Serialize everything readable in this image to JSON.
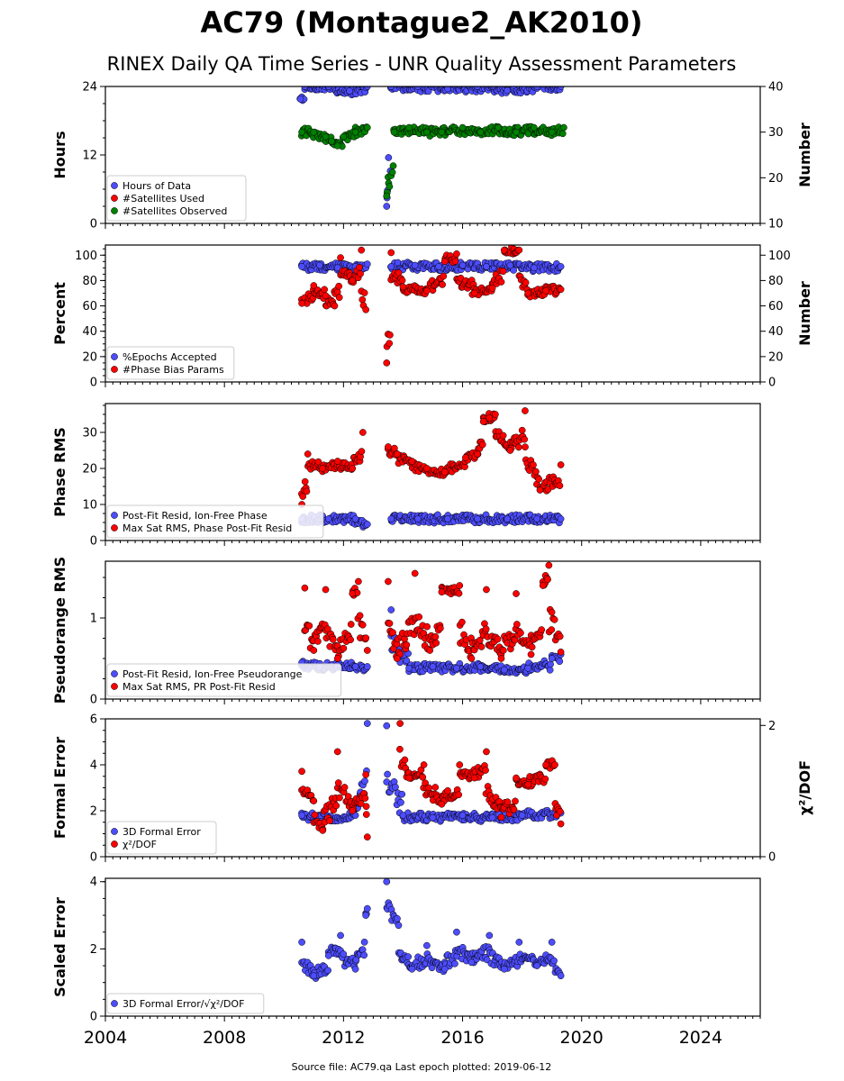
{
  "header": {
    "title": "AC79 (Montague2_AK2010)",
    "subtitle": "RINEX Daily QA Time Series - UNR Quality Assessment Parameters"
  },
  "footer": {
    "text": "Source file: AC79.qa Last epoch plotted: 2019-06-12"
  },
  "colors": {
    "blue": "#4d4dff",
    "red": "#ff0000",
    "green": "#008000",
    "edge": "#000000"
  },
  "chart_data": [
    {
      "type": "scatter",
      "ylabel": "Hours",
      "ylabel_right": "Number",
      "xlim": [
        2004,
        2026
      ],
      "ylim": [
        0,
        24
      ],
      "ylim_right": [
        10,
        40
      ],
      "yticks": [
        0,
        12,
        24
      ],
      "yticks_right": [
        10,
        20,
        30,
        40
      ],
      "legend_position": "lower-left",
      "series": [
        {
          "name": "Hours of Data",
          "color": "blue",
          "axis": "left",
          "points": [
            [
              2010.55,
              21.8
            ],
            [
              2010.7,
              24
            ],
            [
              2011.5,
              24
            ],
            [
              2012.2,
              23.2
            ],
            [
              2012.8,
              24
            ],
            [
              2013.45,
              3
            ],
            [
              2013.6,
              24
            ],
            [
              2014.5,
              24
            ],
            [
              2015.5,
              23.6
            ],
            [
              2016.5,
              24
            ],
            [
              2017.5,
              23.3
            ],
            [
              2018.5,
              24
            ],
            [
              2019.3,
              24
            ]
          ]
        },
        {
          "name": "#Satellites Used",
          "color": "red",
          "axis": "right",
          "points": []
        },
        {
          "name": "#Satellites Observed",
          "color": "green",
          "axis": "right",
          "points": [
            [
              2010.6,
              30
            ],
            [
              2011.0,
              30
            ],
            [
              2011.4,
              29
            ],
            [
              2011.6,
              28
            ],
            [
              2011.8,
              27
            ],
            [
              2012.0,
              29
            ],
            [
              2012.4,
              30
            ],
            [
              2012.8,
              31
            ],
            [
              2013.45,
              16
            ],
            [
              2013.7,
              30
            ],
            [
              2014.2,
              31
            ],
            [
              2014.8,
              30
            ],
            [
              2015.3,
              30
            ],
            [
              2016.0,
              31
            ],
            [
              2016.6,
              30
            ],
            [
              2017.2,
              31
            ],
            [
              2017.8,
              30
            ],
            [
              2018.4,
              31
            ],
            [
              2019.0,
              30
            ],
            [
              2019.4,
              31
            ]
          ]
        }
      ]
    },
    {
      "type": "scatter",
      "ylabel": "Percent",
      "ylabel_right": "Number",
      "xlim": [
        2004,
        2026
      ],
      "ylim": [
        0,
        108
      ],
      "ylim_right": [
        0,
        108
      ],
      "yticks": [
        0,
        20,
        40,
        60,
        80,
        100
      ],
      "yticks_right": [
        0,
        20,
        40,
        60,
        80,
        100
      ],
      "legend_position": "lower-left",
      "series": [
        {
          "name": "%Epochs Accepted",
          "color": "blue",
          "axis": "left",
          "points": [
            [
              2010.6,
              91
            ],
            [
              2011.2,
              92
            ],
            [
              2011.8,
              90
            ],
            [
              2012.4,
              91
            ],
            [
              2012.8,
              93
            ],
            [
              2013.6,
              91
            ],
            [
              2014.4,
              92
            ],
            [
              2015.2,
              91
            ],
            [
              2016.0,
              92
            ],
            [
              2016.8,
              91
            ],
            [
              2017.6,
              92
            ],
            [
              2018.4,
              90
            ],
            [
              2019.3,
              91
            ]
          ]
        },
        {
          "name": "#Phase Bias Params",
          "color": "red",
          "axis": "right",
          "points": [
            [
              2010.6,
              62
            ],
            [
              2011.0,
              76
            ],
            [
              2011.4,
              68
            ],
            [
              2011.7,
              60
            ],
            [
              2011.9,
              98
            ],
            [
              2012.3,
              80
            ],
            [
              2012.6,
              104
            ],
            [
              2012.75,
              57
            ],
            [
              2013.45,
              15
            ],
            [
              2013.6,
              102
            ],
            [
              2014.0,
              75
            ],
            [
              2014.8,
              72
            ],
            [
              2015.4,
              95
            ],
            [
              2015.8,
              101
            ],
            [
              2016.4,
              70
            ],
            [
              2017.0,
              74
            ],
            [
              2017.4,
              104
            ],
            [
              2017.9,
              104
            ],
            [
              2018.2,
              70
            ],
            [
              2018.8,
              72
            ],
            [
              2019.3,
              73
            ]
          ]
        }
      ]
    },
    {
      "type": "scatter",
      "ylabel": "Phase RMS",
      "xlim": [
        2004,
        2026
      ],
      "ylim": [
        0,
        38
      ],
      "yticks": [
        0,
        10,
        20,
        30
      ],
      "legend_position": "lower-left",
      "series": [
        {
          "name": "Post-Fit Resid, Ion-Free Phase",
          "color": "blue",
          "axis": "left",
          "points": [
            [
              2010.6,
              6
            ],
            [
              2011.5,
              6
            ],
            [
              2012.4,
              6
            ],
            [
              2012.8,
              4.5
            ],
            [
              2013.6,
              6
            ],
            [
              2014.5,
              6
            ],
            [
              2015.5,
              6
            ],
            [
              2016.5,
              6
            ],
            [
              2017.5,
              6
            ],
            [
              2018.5,
              6
            ],
            [
              2019.3,
              6
            ]
          ]
        },
        {
          "name": "Max Sat RMS, Phase Post-Fit Resid",
          "color": "red",
          "axis": "left",
          "points": [
            [
              2010.6,
              10
            ],
            [
              2010.8,
              24
            ],
            [
              2011.3,
              20
            ],
            [
              2011.8,
              22
            ],
            [
              2012.3,
              20
            ],
            [
              2012.65,
              30
            ],
            [
              2013.5,
              26
            ],
            [
              2013.8,
              24
            ],
            [
              2014.3,
              22
            ],
            [
              2014.8,
              20
            ],
            [
              2015.4,
              19
            ],
            [
              2016.1,
              23
            ],
            [
              2016.5,
              24
            ],
            [
              2016.7,
              33
            ],
            [
              2016.9,
              34
            ],
            [
              2017.1,
              35
            ],
            [
              2017.6,
              25
            ],
            [
              2018.1,
              36
            ],
            [
              2018.6,
              14
            ],
            [
              2019.3,
              21
            ]
          ]
        }
      ]
    },
    {
      "type": "scatter",
      "ylabel": "Pseudorange RMS",
      "xlim": [
        2004,
        2026
      ],
      "ylim": [
        0,
        1.7
      ],
      "yticks": [
        0,
        1
      ],
      "legend_position": "lower-left",
      "series": [
        {
          "name": "Post-Fit Resid, Ion-Free Pseudorange",
          "color": "blue",
          "axis": "left",
          "points": [
            [
              2010.6,
              0.45
            ],
            [
              2011.2,
              0.4
            ],
            [
              2011.8,
              0.42
            ],
            [
              2012.4,
              0.4
            ],
            [
              2012.8,
              0.4
            ],
            [
              2013.6,
              1.1
            ],
            [
              2014.2,
              0.38
            ],
            [
              2015.0,
              0.4
            ],
            [
              2015.8,
              0.38
            ],
            [
              2016.6,
              0.4
            ],
            [
              2017.4,
              0.36
            ],
            [
              2018.2,
              0.38
            ],
            [
              2019.0,
              0.5
            ],
            [
              2019.3,
              0.55
            ]
          ]
        },
        {
          "name": "Max Sat RMS, PR Post-Fit Resid",
          "color": "red",
          "axis": "left",
          "points": [
            [
              2010.7,
              1.37
            ],
            [
              2011.0,
              0.6
            ],
            [
              2011.4,
              1.35
            ],
            [
              2011.8,
              0.5
            ],
            [
              2012.3,
              1.3
            ],
            [
              2012.5,
              1.45
            ],
            [
              2012.8,
              0.6
            ],
            [
              2013.5,
              1.45
            ],
            [
              2013.8,
              0.5
            ],
            [
              2014.4,
              1.55
            ],
            [
              2014.9,
              0.6
            ],
            [
              2015.3,
              1.32
            ],
            [
              2015.9,
              1.4
            ],
            [
              2016.3,
              0.5
            ],
            [
              2016.8,
              1.35
            ],
            [
              2017.3,
              0.5
            ],
            [
              2017.8,
              1.3
            ],
            [
              2018.3,
              0.55
            ],
            [
              2018.7,
              1.4
            ],
            [
              2018.9,
              1.65
            ],
            [
              2019.3,
              0.58
            ]
          ]
        }
      ]
    },
    {
      "type": "scatter",
      "ylabel": "Formal Error",
      "ylabel_right": "χ²/DOF",
      "xlim": [
        2004,
        2026
      ],
      "ylim": [
        0,
        6
      ],
      "ylim_right": [
        0,
        2.1
      ],
      "yticks": [
        0,
        2,
        4,
        6
      ],
      "yticks_right": [
        0,
        2
      ],
      "legend_position": "lower-left",
      "series": [
        {
          "name": "3D Formal Error",
          "color": "blue",
          "axis": "left",
          "points": [
            [
              2010.6,
              1.8
            ],
            [
              2011.5,
              1.7
            ],
            [
              2012.4,
              1.8
            ],
            [
              2012.8,
              5.8
            ],
            [
              2013.45,
              5.7
            ],
            [
              2014.0,
              1.8
            ],
            [
              2015.0,
              1.7
            ],
            [
              2016.0,
              1.8
            ],
            [
              2017.0,
              1.7
            ],
            [
              2018.0,
              1.8
            ],
            [
              2019.3,
              1.9
            ]
          ]
        },
        {
          "name": "χ²/DOF",
          "color": "red",
          "axis": "right",
          "points": [
            [
              2010.6,
              1.3
            ],
            [
              2011.0,
              0.85
            ],
            [
              2011.3,
              0.4
            ],
            [
              2011.8,
              1.6
            ],
            [
              2012.3,
              0.7
            ],
            [
              2012.75,
              1.25
            ],
            [
              2012.8,
              0.3
            ],
            [
              2013.9,
              2.03
            ],
            [
              2014.2,
              1.2
            ],
            [
              2014.7,
              1.4
            ],
            [
              2015.3,
              0.8
            ],
            [
              2015.9,
              1.4
            ],
            [
              2016.4,
              1.2
            ],
            [
              2016.8,
              1.6
            ],
            [
              2017.3,
              0.6
            ],
            [
              2017.8,
              1.2
            ],
            [
              2018.2,
              1.1
            ],
            [
              2018.8,
              1.4
            ],
            [
              2019.1,
              1.4
            ],
            [
              2019.3,
              0.5
            ]
          ]
        }
      ]
    },
    {
      "type": "scatter",
      "ylabel": "Scaled Error",
      "xlim": [
        2004,
        2026
      ],
      "ylim": [
        0,
        4.1
      ],
      "yticks": [
        0,
        2,
        4
      ],
      "xticks": [
        2004,
        2008,
        2012,
        2016,
        2020,
        2024
      ],
      "legend_position": "lower-left",
      "series": [
        {
          "name": "3D Formal Error/√χ²/DOF",
          "color": "blue",
          "axis": "left",
          "points": [
            [
              2010.6,
              2.2
            ],
            [
              2011.0,
              1.2
            ],
            [
              2011.5,
              1.8
            ],
            [
              2011.9,
              2.4
            ],
            [
              2012.4,
              1.4
            ],
            [
              2012.75,
              3.0
            ],
            [
              2012.8,
              3.2
            ],
            [
              2013.45,
              4.0
            ],
            [
              2013.85,
              2.7
            ],
            [
              2014.3,
              1.4
            ],
            [
              2014.8,
              2.1
            ],
            [
              2015.4,
              1.4
            ],
            [
              2015.8,
              2.5
            ],
            [
              2016.3,
              1.6
            ],
            [
              2016.9,
              2.4
            ],
            [
              2017.4,
              1.4
            ],
            [
              2017.9,
              2.2
            ],
            [
              2018.5,
              1.5
            ],
            [
              2019.0,
              2.2
            ],
            [
              2019.3,
              1.2
            ]
          ]
        }
      ]
    }
  ]
}
